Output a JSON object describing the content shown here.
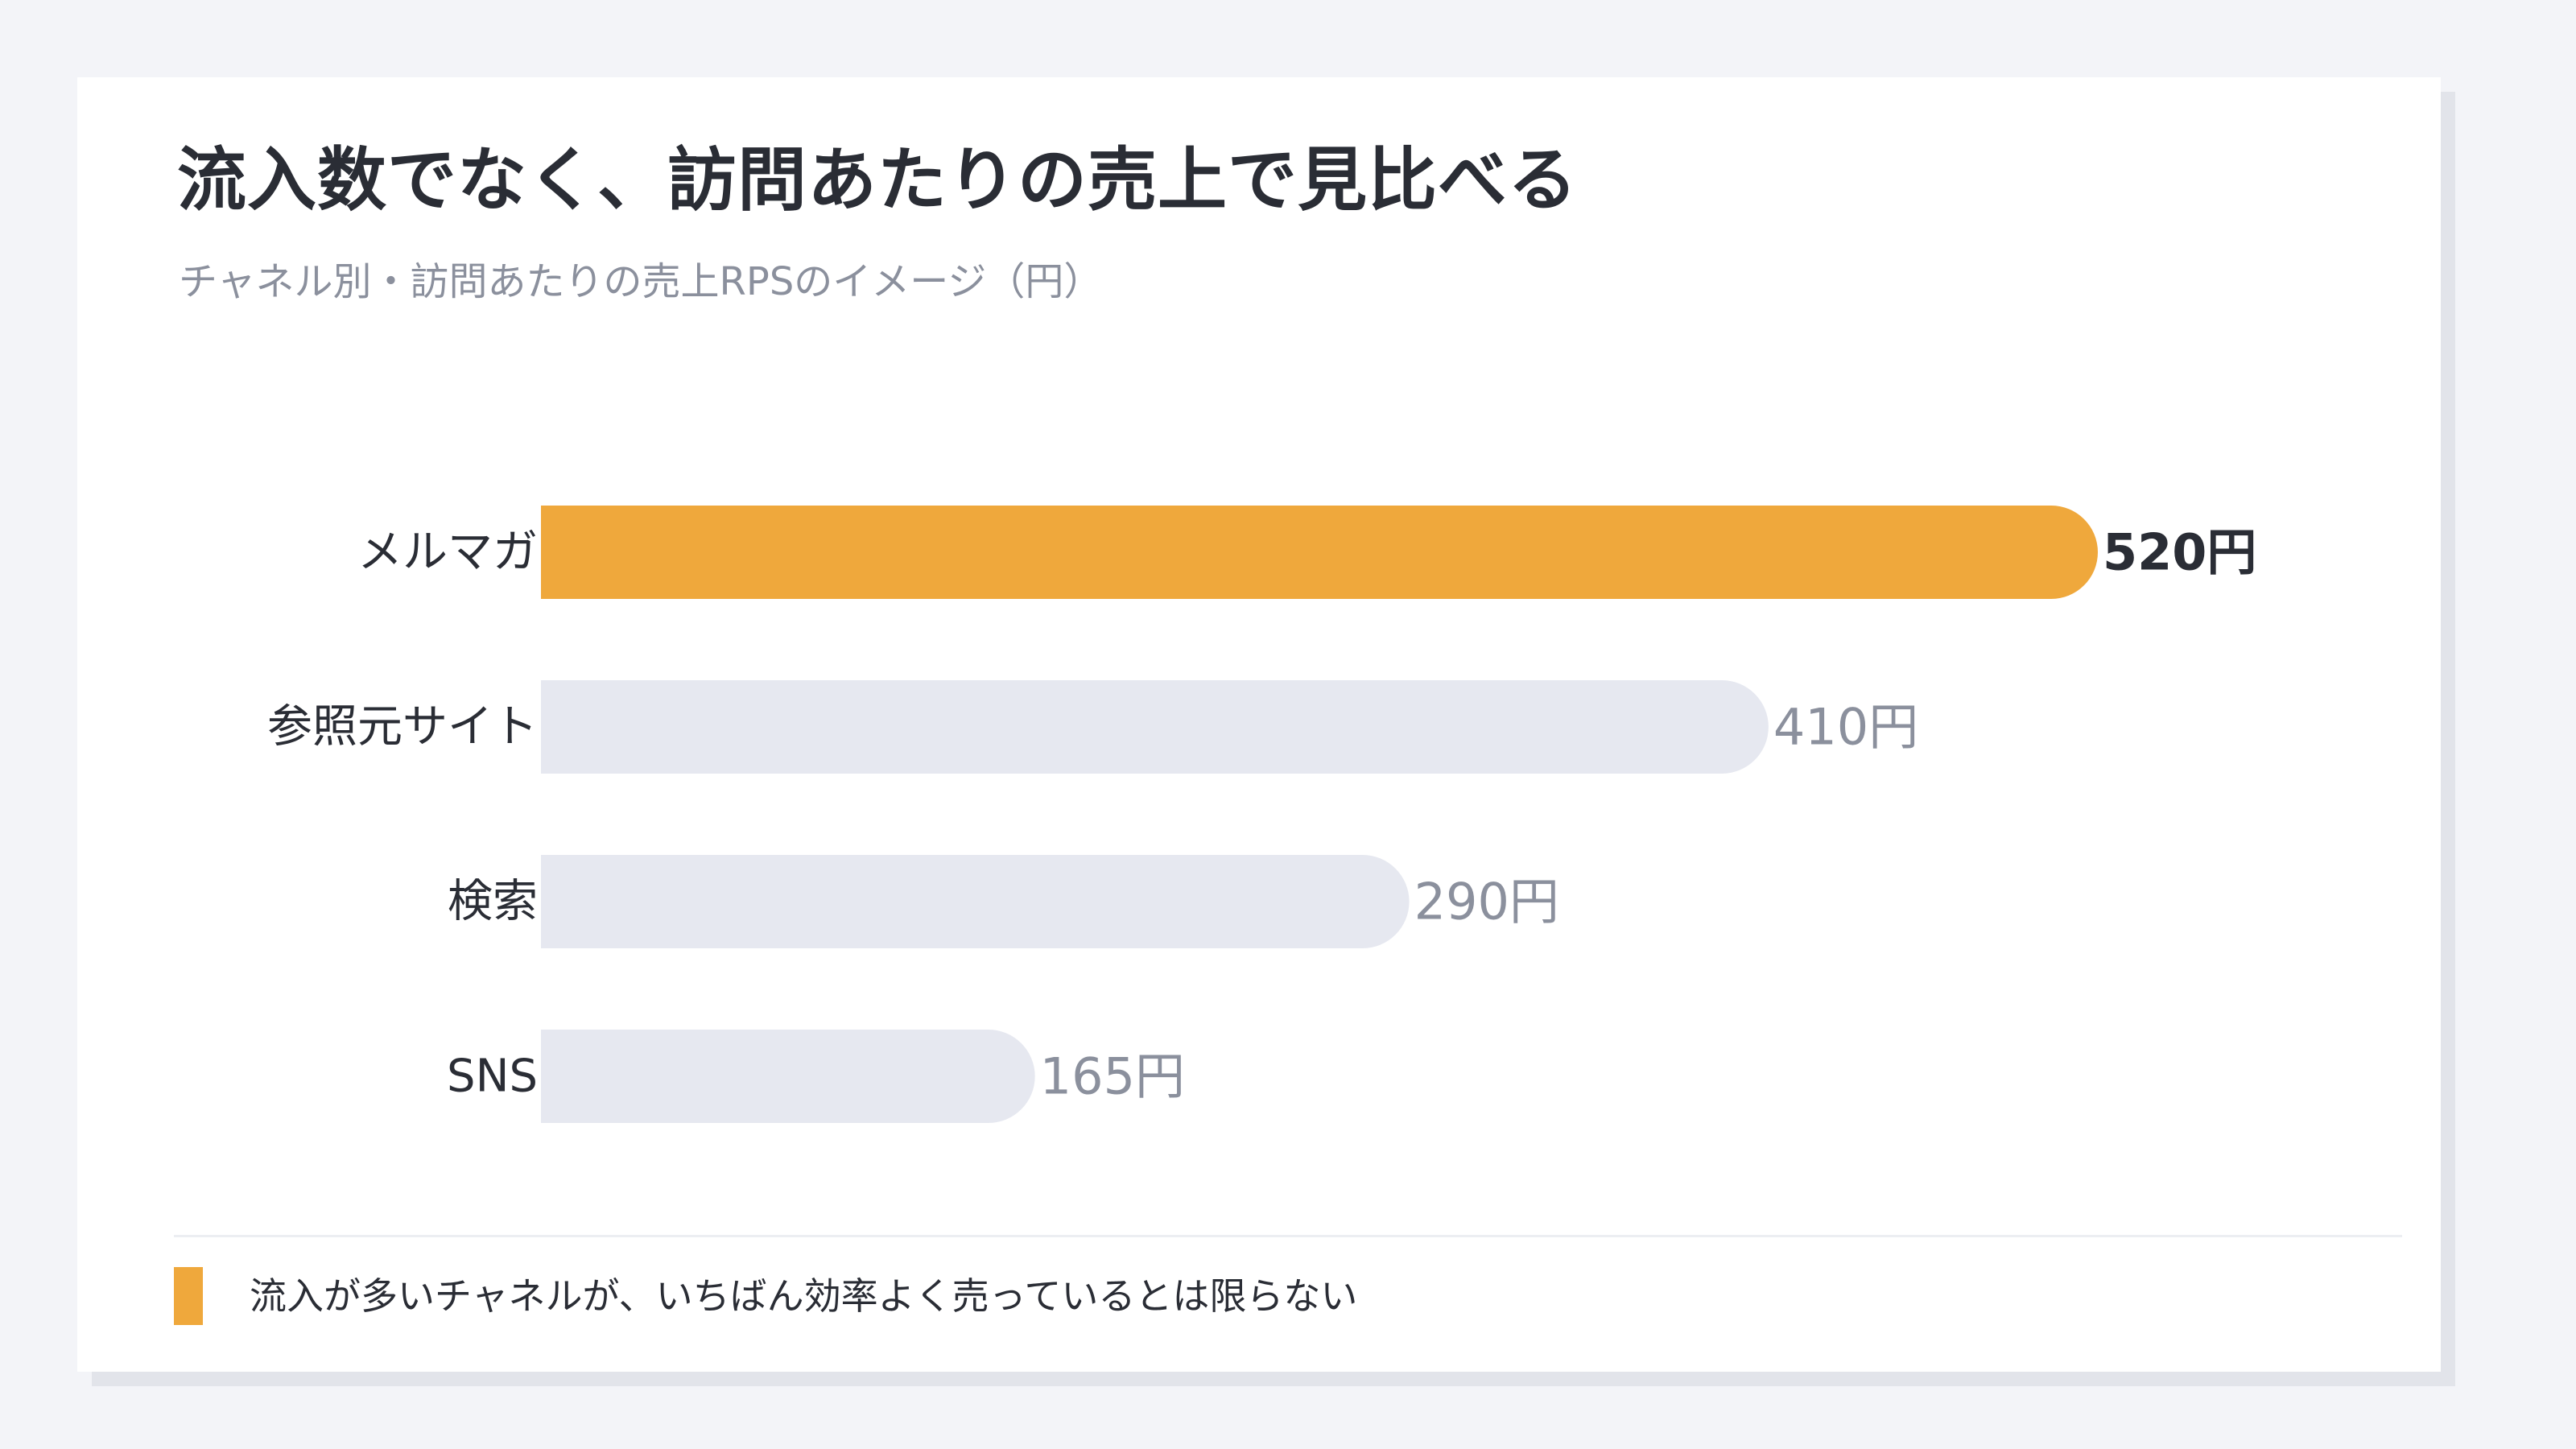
{
  "card": {
    "title": "流入数でなく、訪問あたりの売上で見比べる",
    "subtitle": "チャネル別・訪問あたりの売上RPSのイメージ（円）"
  },
  "chart_data": {
    "type": "bar",
    "orientation": "horizontal",
    "categories": [
      "メルマガ",
      "参照元サイト",
      "検索",
      "SNS"
    ],
    "values": [
      520,
      410,
      290,
      165
    ],
    "value_labels": [
      "520円",
      "410円",
      "290円",
      "165円"
    ],
    "unit": "円",
    "highlight_index": 0,
    "xlim": [
      0,
      520
    ],
    "grid": false,
    "colors": {
      "highlight": "#efa83c",
      "default": "#e6e8f0"
    }
  },
  "note": {
    "text": "流入が多いチャネルが、いちばん効率よく売っているとは限らない",
    "marker_color": "#efa83c"
  }
}
